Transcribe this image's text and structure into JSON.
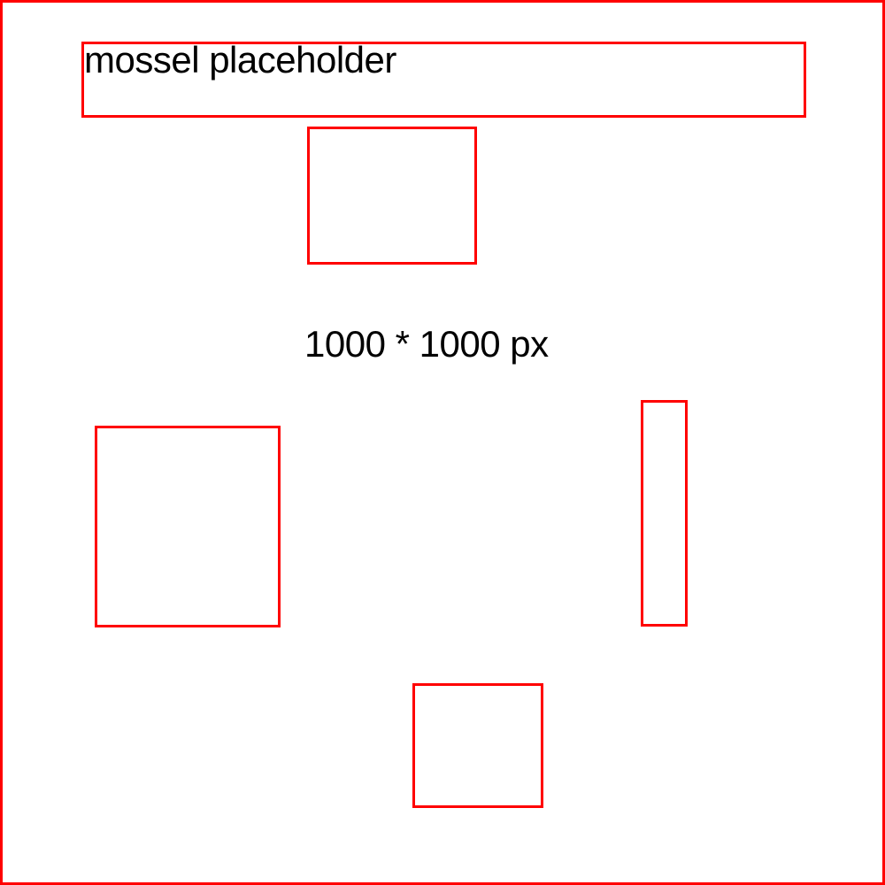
{
  "header": {
    "text": "mossel placeholder"
  },
  "canvas": {
    "size_label": "1000 * 1000 px"
  },
  "colors": {
    "outline": "#ff0000",
    "text": "#000000",
    "background": "#ffffff"
  }
}
